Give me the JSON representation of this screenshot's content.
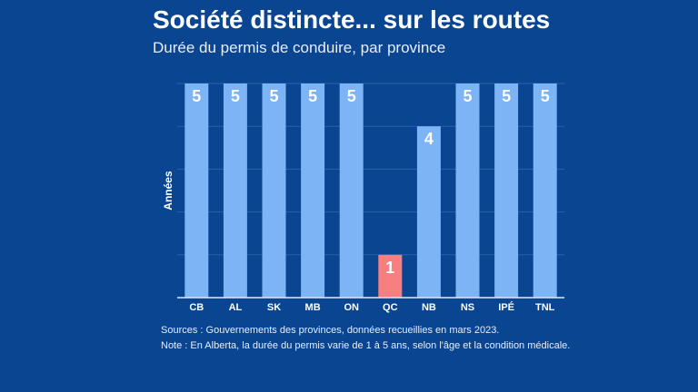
{
  "chart_data": {
    "type": "bar",
    "title": "Société distincte... sur les routes",
    "subtitle": "Durée du permis de conduire, par province",
    "ylabel": "Années",
    "xlabel": "",
    "ylim": [
      0,
      5
    ],
    "grid": true,
    "categories": [
      "CB",
      "AL",
      "SK",
      "MB",
      "ON",
      "QC",
      "NB",
      "NS",
      "IPÉ",
      "TNL"
    ],
    "values": [
      5,
      5,
      5,
      5,
      5,
      1,
      4,
      5,
      5,
      5
    ],
    "colors": {
      "default": "#7db4f5",
      "highlight": "#f77f7f",
      "background": "#0a4592"
    },
    "highlight": "QC"
  },
  "notes": {
    "sources": "Sources : Gouvernements des provinces, données recueillies en mars 2023.",
    "note": "Note : En Alberta, la durée du permis varie de 1 à 5 ans, selon l'âge et la condition médicale."
  }
}
